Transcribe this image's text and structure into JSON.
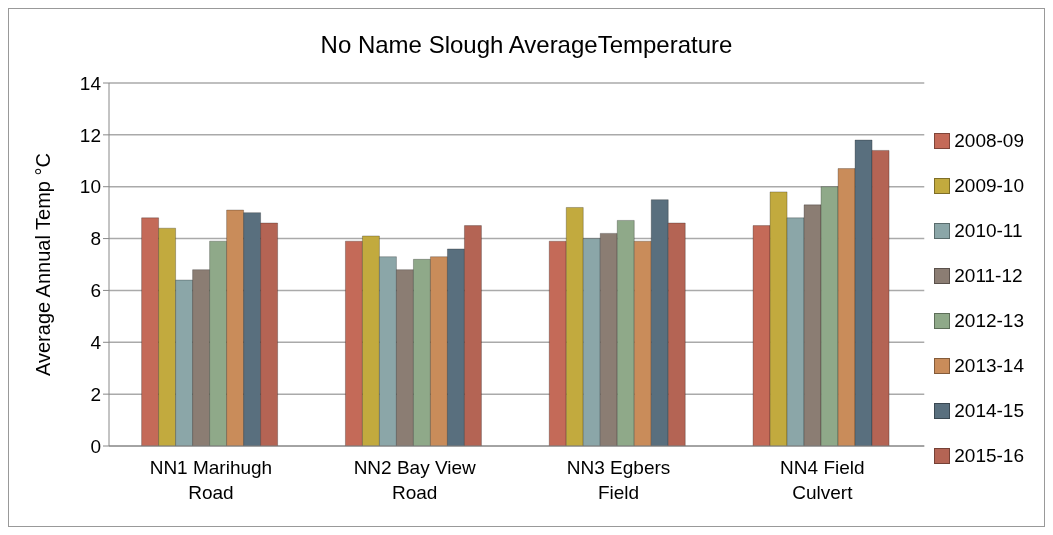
{
  "chart_data": {
    "type": "bar",
    "title": "No Name Slough AverageTemperature",
    "ylabel": "Average Annual Temp °C",
    "categories": [
      "NN1 Marihugh Road",
      "NN2 Bay View Road",
      "NN3 Egbers Field",
      "NN4 Field Culvert"
    ],
    "series": [
      {
        "name": "2008-09",
        "color": "#c46a58",
        "values": [
          8.8,
          7.9,
          7.9,
          8.5
        ]
      },
      {
        "name": "2009-10",
        "color": "#c2aa3e",
        "values": [
          8.4,
          8.1,
          9.2,
          9.8
        ]
      },
      {
        "name": "2010-11",
        "color": "#8ba6a8",
        "values": [
          6.4,
          7.3,
          8.0,
          8.8
        ]
      },
      {
        "name": "2011-12",
        "color": "#8b7d73",
        "values": [
          6.8,
          6.8,
          8.2,
          9.3
        ]
      },
      {
        "name": "2012-13",
        "color": "#8fa989",
        "values": [
          7.9,
          7.2,
          8.7,
          10.0
        ]
      },
      {
        "name": "2013-14",
        "color": "#c98c5a",
        "values": [
          9.1,
          7.3,
          7.9,
          10.7
        ]
      },
      {
        "name": "2014-15",
        "color": "#596f7e",
        "values": [
          9.0,
          7.6,
          9.5,
          11.8
        ]
      },
      {
        "name": "2015-16",
        "color": "#b46454",
        "values": [
          8.6,
          8.5,
          8.6,
          11.4
        ]
      }
    ],
    "ylim": [
      0,
      14
    ],
    "yticks": [
      0,
      2,
      4,
      6,
      8,
      10,
      12,
      14
    ],
    "grid": "y",
    "legend": "right"
  }
}
